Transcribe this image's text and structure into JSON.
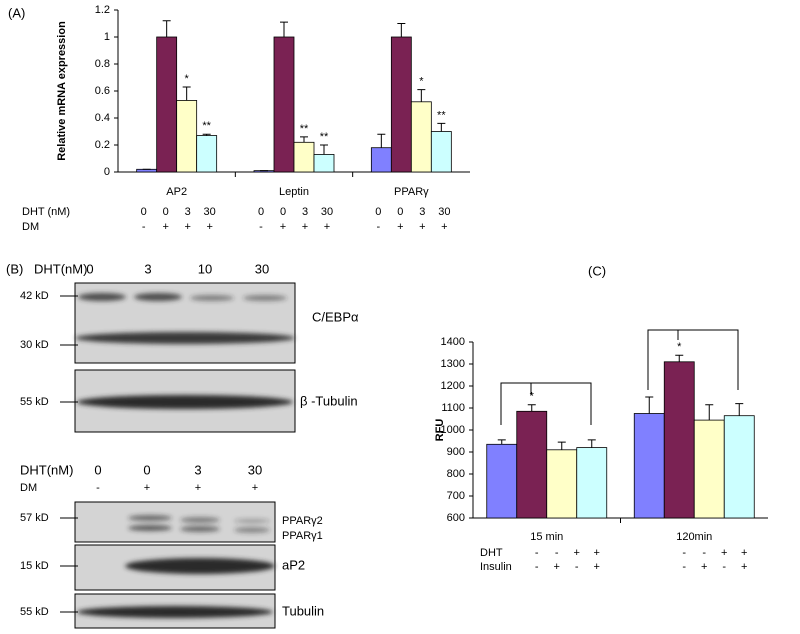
{
  "chart_data": [
    {
      "type": "bar",
      "panel_label": "(A)",
      "y_label": "Relative mRNA expression",
      "categories": [
        "AP2",
        "Leptin",
        "PPARγ"
      ],
      "series": [
        {
          "color": "#8080ff",
          "values": [
            0.02,
            0.01,
            0.18
          ],
          "errors": [
            0,
            0,
            0.1
          ]
        },
        {
          "color": "#7a2253",
          "values": [
            1,
            1,
            1
          ],
          "errors": [
            0.12,
            0.11,
            0.1
          ]
        },
        {
          "color": "#ffffc8",
          "values": [
            0.53,
            0.22,
            0.52
          ],
          "errors": [
            0.1,
            0.04,
            0.09
          ],
          "annotations": [
            "*",
            "**",
            "*"
          ]
        },
        {
          "color": "#ccffff",
          "values": [
            0.27,
            0.13,
            0.3
          ],
          "errors": [
            0.01,
            0.07,
            0.06
          ],
          "annotations": [
            "**",
            "**",
            "**"
          ]
        }
      ],
      "ylim": [
        0,
        1.2
      ],
      "yticks": [
        0,
        0.2,
        0.4,
        0.6,
        0.8,
        1,
        1.2
      ],
      "condition_rows": [
        {
          "label": "DHT (nM)",
          "values": [
            "0",
            "0",
            "3",
            "30"
          ]
        },
        {
          "label": "DM",
          "values": [
            "-",
            "+",
            "+",
            "+"
          ]
        }
      ]
    },
    {
      "type": "bar",
      "panel_label": "(C)",
      "y_label": "RFU",
      "categories": [
        "15 min",
        "120min"
      ],
      "series": [
        {
          "color": "#8080ff",
          "values": [
            935,
            1075
          ],
          "errors": [
            20,
            75
          ]
        },
        {
          "color": "#7a2253",
          "values": [
            1085,
            1310
          ],
          "errors": [
            30,
            30
          ],
          "annotations": [
            "*",
            "*"
          ]
        },
        {
          "color": "#ffffc8",
          "values": [
            910,
            1045
          ],
          "errors": [
            35,
            70
          ]
        },
        {
          "color": "#ccffff",
          "values": [
            920,
            1065
          ],
          "errors": [
            35,
            55
          ]
        }
      ],
      "ylim": [
        600,
        1400
      ],
      "yticks": [
        600,
        700,
        800,
        900,
        1000,
        1100,
        1200,
        1300,
        1400
      ],
      "condition_rows": [
        {
          "label": "DHT",
          "values": [
            "-",
            "-",
            "+",
            "+"
          ]
        },
        {
          "label": "Insulin",
          "values": [
            "-",
            "+",
            "-",
            "+"
          ]
        }
      ]
    }
  ],
  "blots": {
    "panel_label": "(B)",
    "top": {
      "header_label": "DHT(nM)",
      "lanes": [
        "0",
        "3",
        "10",
        "30"
      ],
      "markers": [
        "42 kD",
        "30 kD",
        "55 kD"
      ],
      "proteins": [
        "C/EBPα",
        "β -Tubulin"
      ]
    },
    "bottom": {
      "rows": [
        {
          "label": "DHT(nM)",
          "lanes": [
            "0",
            "0",
            "3",
            "30"
          ]
        },
        {
          "label": "DM",
          "lanes": [
            "-",
            "+",
            "+",
            "+"
          ]
        }
      ],
      "markers": [
        "57 kD",
        "15 kD",
        "55 kD"
      ],
      "proteins": [
        "PPARγ2",
        "PPARγ1",
        "aP2",
        "Tubulin"
      ]
    }
  }
}
